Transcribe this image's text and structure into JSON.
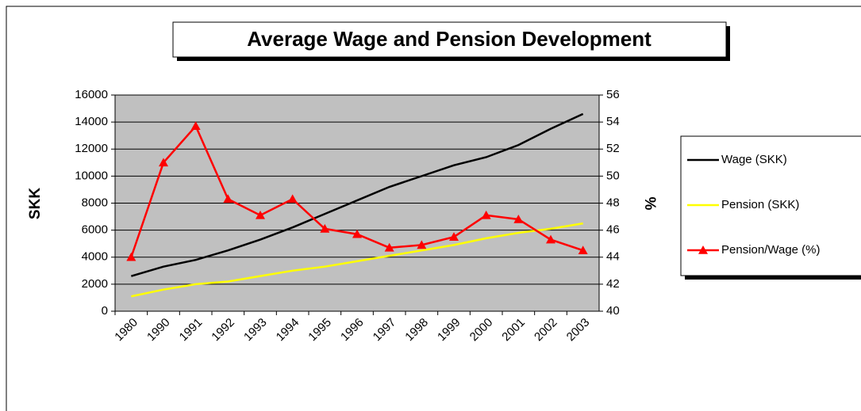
{
  "chart_data": {
    "type": "line",
    "title": "Average Wage and Pension Development",
    "ylabel": "SKK",
    "y2label": "%",
    "categories": [
      "1980",
      "1990",
      "1991",
      "1992",
      "1993",
      "1994",
      "1995",
      "1996",
      "1997",
      "1998",
      "1999",
      "2000",
      "2001",
      "2002",
      "2003"
    ],
    "series": [
      {
        "name": "Wage (SKK)",
        "color": "#000000",
        "values": [
          2600,
          3300,
          3800,
          4500,
          5300,
          6200,
          7200,
          8200,
          9200,
          10000,
          10800,
          11400,
          12300,
          13500,
          14600
        ]
      },
      {
        "name": "Pension (SKK)",
        "color": "#ffff00",
        "values": [
          1100,
          1600,
          2000,
          2200,
          2600,
          3000,
          3300,
          3700,
          4100,
          4500,
          4900,
          5400,
          5800,
          6100,
          6500
        ]
      },
      {
        "name": "Pension/Wage (%)",
        "color": "#ff0000",
        "axis": "y2",
        "marker": "triangle",
        "values": [
          44,
          51,
          53.7,
          48.3,
          47.1,
          48.3,
          46.1,
          45.7,
          44.7,
          44.9,
          45.5,
          47.1,
          46.8,
          45.3,
          44.5
        ]
      }
    ],
    "ylim": [
      0,
      16000
    ],
    "yticks": [
      0,
      2000,
      4000,
      6000,
      8000,
      10000,
      12000,
      14000,
      16000
    ],
    "y2lim": [
      40,
      56
    ],
    "y2ticks": [
      40,
      42,
      44,
      46,
      48,
      50,
      52,
      54,
      56
    ],
    "grid": true,
    "legend": "right"
  }
}
